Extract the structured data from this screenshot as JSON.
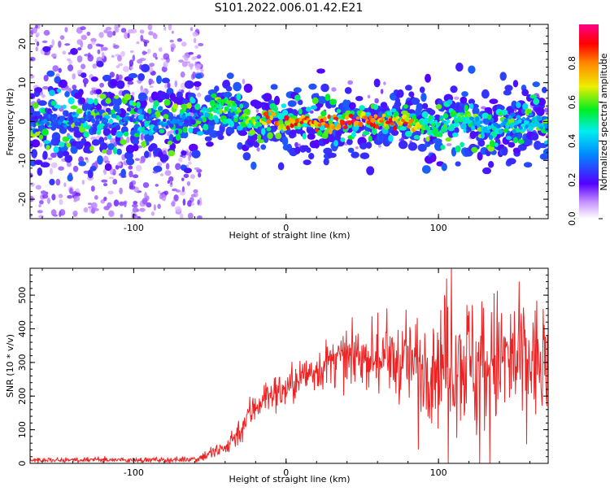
{
  "title": "S101.2022.006.01.42.E21",
  "colors": {
    "series": "#ee2222",
    "axis": "#000000"
  },
  "chart_data": [
    {
      "type": "heatmap",
      "xlabel": "Height of straight line (km)",
      "ylabel": "Frequency (Hz)",
      "xlim": [
        -168,
        172
      ],
      "ylim": [
        -25,
        25
      ],
      "x_ticks": [
        -100,
        0,
        100
      ],
      "x_tick_labels": [
        "-100",
        "0",
        "100"
      ],
      "y_ticks": [
        -20,
        -10,
        0,
        10,
        20
      ],
      "y_tick_labels": [
        "-20",
        "-10",
        "0",
        "10",
        "20"
      ],
      "colorbar": {
        "label": "Normalized spectral amplitude",
        "range": [
          0.0,
          1.0
        ],
        "ticks": [
          0.0,
          0.2,
          0.4,
          0.6,
          0.8
        ],
        "tick_labels": [
          "0.0",
          "0.2",
          "0.4",
          "0.6",
          "0.8"
        ],
        "colormap": "rainbow"
      },
      "ridge": {
        "x": [
          -168,
          -130,
          -100,
          -70,
          -60,
          -52,
          -45,
          -35,
          -28,
          -22,
          -18,
          -13,
          -8,
          -4,
          0,
          10,
          20,
          30,
          40,
          50,
          60,
          70,
          80,
          90,
          100,
          110,
          120,
          130,
          140,
          150,
          160,
          172
        ],
        "freq": [
          0,
          0.5,
          0.5,
          0,
          1,
          2.5,
          4,
          3.5,
          1.5,
          -0.5,
          -1,
          0.5,
          1.5,
          -1.5,
          -0.5,
          0,
          0,
          -0.5,
          0,
          0.5,
          0,
          0,
          0,
          -0.5,
          -1,
          0.5,
          0,
          -1,
          -1,
          0,
          0,
          -0.5
        ],
        "amplitude": [
          0.25,
          0.25,
          0.25,
          0.3,
          0.4,
          0.5,
          0.6,
          0.6,
          0.6,
          0.65,
          0.6,
          0.8,
          0.9,
          0.7,
          0.85,
          0.85,
          0.9,
          0.8,
          0.95,
          0.85,
          0.9,
          0.9,
          0.85,
          0.6,
          0.5,
          0.55,
          0.45,
          0.4,
          0.4,
          0.4,
          0.4,
          0.35
        ]
      }
    },
    {
      "type": "line",
      "xlabel": "Height of straight line (km)",
      "ylabel": "SNR (10 * v/v)",
      "xlim": [
        -168,
        172
      ],
      "ylim": [
        0,
        580
      ],
      "x_ticks": [
        -100,
        0,
        100
      ],
      "x_tick_labels": [
        "-100",
        "0",
        "100"
      ],
      "y_ticks": [
        0,
        100,
        200,
        300,
        400,
        500
      ],
      "y_tick_labels": [
        "0",
        "100",
        "200",
        "300",
        "400",
        "500"
      ],
      "series": [
        {
          "x": [
            -168,
            -140,
            -110,
            -80,
            -65,
            -58,
            -55,
            -50,
            -45,
            -40,
            -35,
            -30,
            -25,
            -20,
            -15,
            -10,
            -5,
            0,
            10,
            20,
            30,
            40,
            50,
            60,
            70,
            80,
            90,
            100,
            110,
            120,
            130,
            140,
            150,
            160,
            172
          ],
          "values": [
            10,
            10,
            10,
            10,
            12,
            15,
            20,
            30,
            35,
            45,
            75,
            100,
            140,
            170,
            195,
            205,
            210,
            220,
            255,
            280,
            300,
            310,
            320,
            315,
            305,
            300,
            305,
            300,
            310,
            305,
            300,
            305,
            300,
            300,
            300
          ],
          "spread": [
            5,
            5,
            5,
            5,
            6,
            8,
            10,
            14,
            18,
            20,
            25,
            30,
            35,
            35,
            35,
            35,
            40,
            40,
            40,
            45,
            50,
            55,
            55,
            60,
            70,
            85,
            100,
            120,
            130,
            140,
            140,
            140,
            140,
            130,
            120
          ]
        }
      ]
    }
  ]
}
